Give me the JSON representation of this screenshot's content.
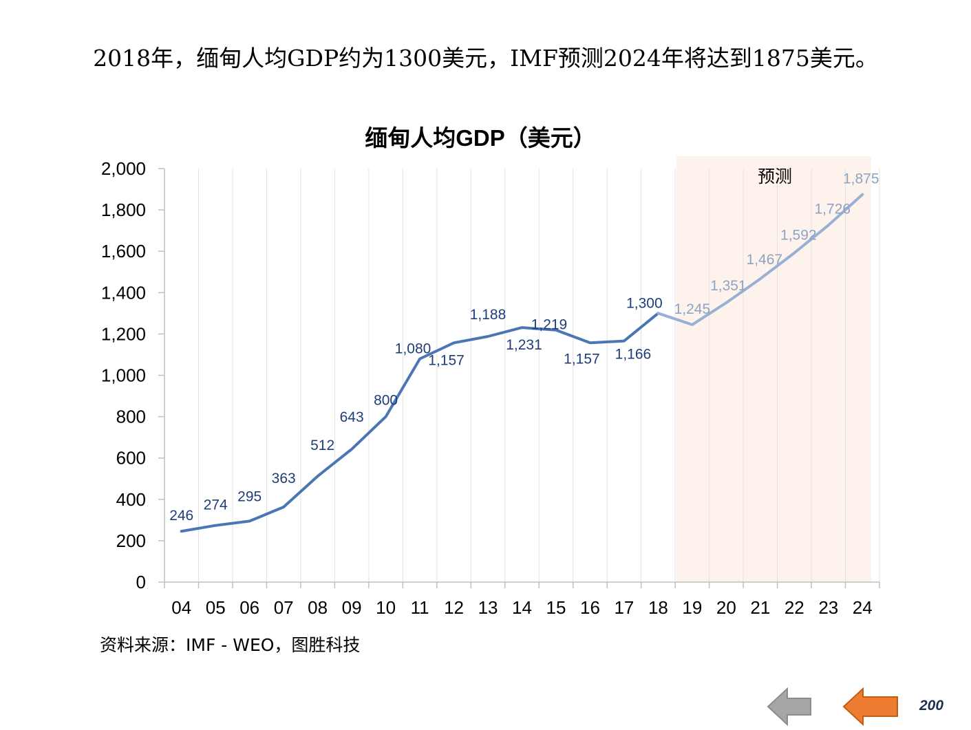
{
  "headline": "2018年，缅甸人均GDP约为1300美元，IMF预测2024年将达到1875美元。",
  "source_note": "资料来源：IMF - WEO，图胜科技",
  "page_number": "200",
  "colors": {
    "actual_line": "#4a76b4",
    "forecast_line": "#97b0d4",
    "actual_label": "#1f3d78",
    "forecast_label": "#8ea3c3",
    "forecast_band": "#fdf3ec",
    "grid": "#e2e2e2",
    "nav_prev": "#a6a6a6",
    "nav_next": "#ed7d31"
  },
  "nav": {
    "prev_icon": "left-arrow-icon",
    "next_icon": "left-arrow-icon"
  },
  "chart_data": {
    "type": "line",
    "title": "缅甸人均GDP（美元）",
    "xlabel": "",
    "ylabel": "",
    "categories": [
      "04",
      "05",
      "06",
      "07",
      "08",
      "09",
      "10",
      "11",
      "12",
      "13",
      "14",
      "15",
      "16",
      "17",
      "18",
      "19",
      "20",
      "21",
      "22",
      "23",
      "24"
    ],
    "series": [
      {
        "name": "人均GDP",
        "values": [
          246,
          274,
          295,
          363,
          512,
          643,
          800,
          1080,
          1157,
          1188,
          1231,
          1219,
          1157,
          1166,
          1300,
          1245,
          1351,
          1467,
          1592,
          1726,
          1875
        ],
        "labels": [
          "246",
          "274",
          "295",
          "363",
          "512",
          "643",
          "800",
          "1,080",
          "1,157",
          "1,188",
          "1,231",
          "1,219",
          "1,157",
          "1,166",
          "1,300",
          "1,245",
          "1,351",
          "1,467",
          "1,592",
          "1,726",
          "1,875"
        ]
      }
    ],
    "forecast_start_category": "19",
    "forecast_label": "预测",
    "ylim": [
      0,
      2000
    ],
    "yticks": [
      0,
      200,
      400,
      600,
      800,
      1000,
      1200,
      1400,
      1600,
      1800,
      2000
    ],
    "ytick_labels": [
      "0",
      "200",
      "400",
      "600",
      "800",
      "1,000",
      "1,200",
      "1,400",
      "1,600",
      "1,800",
      "2,000"
    ],
    "grid": "vertical"
  }
}
